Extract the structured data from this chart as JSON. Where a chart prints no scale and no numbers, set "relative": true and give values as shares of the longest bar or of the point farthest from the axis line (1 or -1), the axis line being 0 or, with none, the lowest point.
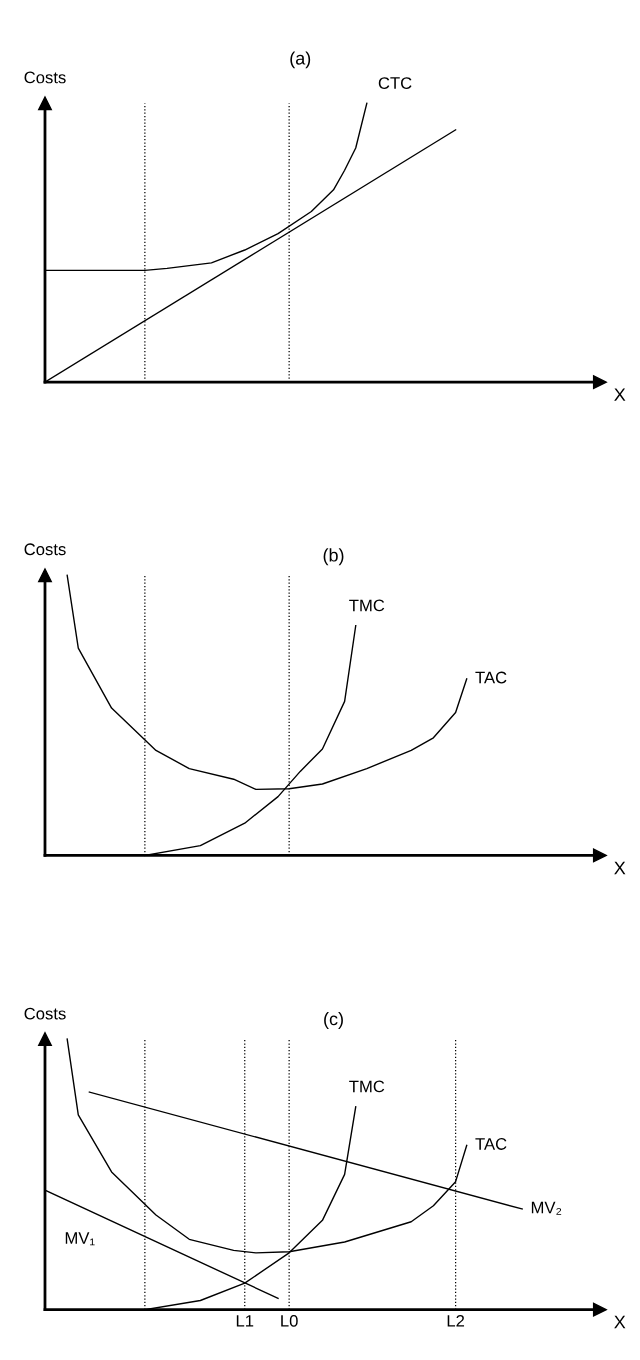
{
  "chart_data": [
    {
      "type": "line",
      "title": "(a)",
      "ylabel": "Costs",
      "xlabel": "X",
      "relative": true,
      "grid": false,
      "legend": false,
      "tick_labels": false,
      "categories": [
        null,
        null,
        null,
        null,
        null,
        null,
        null,
        null,
        null,
        null,
        null,
        null,
        null,
        null,
        null,
        null,
        null,
        null,
        null,
        null,
        null,
        null,
        null,
        null,
        null,
        null,
        null,
        null,
        null,
        null,
        null,
        null,
        null,
        null,
        null,
        null,
        null,
        null,
        null,
        null,
        null,
        null,
        null,
        null,
        null,
        null,
        null,
        null,
        null,
        null,
        null
      ],
      "series": [
        {
          "name": "CTC",
          "color": "#000000",
          "values": [
            0.401,
            null,
            null,
            null,
            null,
            null,
            null,
            null,
            null,
            0.401,
            null,
            0.408,
            null,
            null,
            null,
            0.428,
            null,
            null,
            0.474,
            null,
            null,
            0.533,
            null,
            null,
            0.612,
            null,
            0.69,
            0.76,
            0.84,
            1,
            null,
            null,
            null,
            null,
            null,
            null,
            null,
            null,
            null,
            null,
            null,
            null,
            null,
            null,
            null,
            null,
            null,
            null,
            null,
            null,
            null
          ]
        },
        {
          "color": "#000000",
          "values": [
            0,
            null,
            null,
            null,
            null,
            null,
            null,
            null,
            null,
            null,
            null,
            null,
            null,
            null,
            null,
            null,
            null,
            null,
            null,
            null,
            null,
            null,
            null,
            null,
            null,
            null,
            null,
            null,
            null,
            null,
            null,
            null,
            null,
            null,
            null,
            null,
            null,
            0.905,
            null,
            null,
            null,
            null,
            null,
            null,
            null,
            null,
            null,
            null,
            null,
            null,
            null
          ]
        }
      ]
    },
    {
      "type": "line",
      "title": "(b)",
      "ylabel": "Costs",
      "xlabel": "X",
      "relative": true,
      "grid": false,
      "legend": false,
      "tick_labels": false,
      "categories": [
        null,
        null,
        null,
        null,
        null,
        null,
        null,
        null,
        null,
        null,
        null,
        null,
        null,
        null,
        null,
        null,
        null,
        null,
        null,
        null,
        null,
        null,
        null,
        null,
        null,
        null,
        null,
        null,
        null,
        null,
        null,
        null,
        null,
        null,
        null,
        null,
        null,
        null,
        null,
        null,
        null,
        null,
        null,
        null,
        null,
        null,
        null,
        null,
        null,
        null,
        null
      ],
      "series": [
        {
          "name": "TMC",
          "color": "#000000",
          "values": [
            null,
            null,
            null,
            null,
            null,
            null,
            null,
            null,
            null,
            0,
            null,
            null,
            null,
            null,
            0.035,
            null,
            null,
            null,
            0.115,
            null,
            null,
            0.21,
            null,
            0.3,
            null,
            0.38,
            null,
            0.55,
            0.82,
            null,
            null,
            null,
            null,
            null,
            null,
            null,
            null,
            null,
            null,
            null,
            null,
            null,
            null,
            null,
            null,
            null,
            null,
            null,
            null,
            null,
            null
          ]
        },
        {
          "name": "TAC",
          "color": "#000000",
          "values": [
            null,
            null,
            1,
            0.74,
            null,
            null,
            0.526,
            null,
            null,
            null,
            0.375,
            null,
            null,
            0.31,
            null,
            null,
            null,
            0.272,
            null,
            0.236,
            null,
            null,
            0.238,
            null,
            null,
            0.255,
            null,
            null,
            null,
            0.31,
            null,
            null,
            null,
            0.375,
            null,
            0.42,
            null,
            0.51,
            0.63,
            null,
            null,
            null,
            null,
            null,
            null,
            null,
            null,
            null,
            null,
            null,
            null
          ]
        }
      ]
    },
    {
      "type": "line",
      "title": "(c)",
      "ylabel": "Costs",
      "xlabel": "X",
      "relative": true,
      "grid": "x",
      "legend": false,
      "tick_labels": "x",
      "categories": [
        null,
        null,
        null,
        null,
        null,
        null,
        null,
        null,
        null,
        null,
        null,
        null,
        null,
        null,
        null,
        null,
        null,
        null,
        "L1",
        null,
        null,
        null,
        "L0",
        null,
        null,
        null,
        null,
        null,
        null,
        null,
        null,
        null,
        null,
        null,
        null,
        null,
        null,
        "L2",
        null,
        null,
        null,
        null,
        null,
        null,
        null,
        null,
        null,
        null,
        null,
        null,
        null
      ],
      "series": [
        {
          "name": "TMC",
          "color": "#000000",
          "values": [
            null,
            null,
            null,
            null,
            null,
            null,
            null,
            null,
            null,
            0,
            null,
            null,
            null,
            null,
            0.034,
            null,
            null,
            null,
            0.098,
            null,
            null,
            null,
            0.21,
            null,
            null,
            0.33,
            null,
            0.5,
            0.75,
            null,
            null,
            null,
            null,
            null,
            null,
            null,
            null,
            null,
            null,
            null,
            null,
            null,
            null,
            null,
            null,
            null,
            null,
            null,
            null,
            null,
            null
          ]
        },
        {
          "name": "TAC",
          "color": "#000000",
          "values": [
            null,
            null,
            1,
            0.72,
            null,
            null,
            0.509,
            null,
            null,
            null,
            0.35,
            null,
            null,
            0.26,
            null,
            null,
            null,
            0.219,
            null,
            0.21,
            null,
            null,
            0.214,
            null,
            null,
            null,
            null,
            0.25,
            null,
            null,
            null,
            null,
            null,
            0.325,
            null,
            0.384,
            null,
            0.473,
            0.607,
            null,
            null,
            null,
            null,
            null,
            null,
            null,
            null,
            null,
            null,
            null,
            null
          ]
        },
        {
          "name": "MV₂",
          "color": "#000000",
          "values": [
            null,
            null,
            null,
            null,
            0.804,
            null,
            null,
            null,
            null,
            null,
            null,
            null,
            null,
            null,
            null,
            null,
            null,
            null,
            null,
            null,
            null,
            null,
            null,
            null,
            null,
            null,
            null,
            null,
            null,
            null,
            null,
            null,
            null,
            null,
            null,
            null,
            null,
            null,
            null,
            null,
            null,
            null,
            null,
            0.372,
            null,
            null,
            null,
            null,
            null,
            null,
            null
          ]
        },
        {
          "name": "MV₁",
          "color": "#000000",
          "values": [
            0.442,
            null,
            null,
            null,
            null,
            null,
            null,
            null,
            null,
            null,
            null,
            null,
            null,
            null,
            null,
            null,
            null,
            null,
            null,
            null,
            null,
            0.042,
            null,
            null,
            null,
            null,
            null,
            null,
            null,
            null,
            null,
            null,
            null,
            null,
            null,
            null,
            null,
            null,
            null,
            null,
            null,
            null,
            null,
            null,
            null,
            null,
            null,
            null,
            null,
            null,
            null
          ]
        }
      ]
    }
  ]
}
